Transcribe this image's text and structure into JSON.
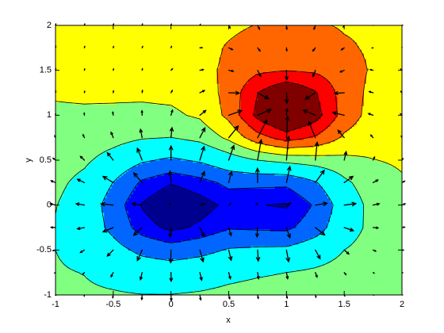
{
  "chart_data": {
    "type": "contour",
    "xlabel": "x",
    "ylabel": "y",
    "xlim": [
      -1,
      2
    ],
    "ylim": [
      -1,
      2
    ],
    "xticks": [
      -1,
      -0.5,
      0,
      0.5,
      1,
      1.5,
      2
    ],
    "yticks": [
      -1,
      -0.5,
      0,
      0.5,
      1,
      1.5,
      2
    ],
    "x": [
      -1,
      -0.75,
      -0.5,
      -0.25,
      0,
      0.25,
      0.5,
      0.75,
      1,
      1.25,
      1.5,
      1.75,
      2
    ],
    "y": [
      -1,
      -0.75,
      -0.5,
      -0.25,
      0,
      0.25,
      0.5,
      0.75,
      1,
      1.25,
      1.5,
      1.75,
      2
    ],
    "z": [
      [
        -0.44,
        -0.44,
        -0.46,
        -0.49,
        -0.49,
        -0.45,
        -0.39,
        -0.34,
        -0.31,
        -0.27,
        -0.24,
        -0.21,
        -0.18
      ],
      [
        -0.46,
        -0.51,
        -0.63,
        -0.77,
        -0.83,
        -0.75,
        -0.62,
        -0.55,
        -0.5,
        -0.41,
        -0.3,
        -0.22,
        -0.18
      ],
      [
        -0.5,
        -0.65,
        -0.97,
        -1.36,
        -1.54,
        -1.39,
        -1.15,
        -1.09,
        -1.07,
        -0.83,
        -0.5,
        -0.28,
        -0.19
      ],
      [
        -0.53,
        -0.8,
        -1.36,
        -2.04,
        -2.37,
        -2.16,
        -1.85,
        -1.89,
        -1.92,
        -1.47,
        -0.78,
        -0.35,
        -0.19
      ],
      [
        -0.48,
        -0.8,
        -1.48,
        -2.29,
        -2.7,
        -2.46,
        -2.13,
        -2.23,
        -2.3,
        -1.73,
        -0.87,
        -0.32,
        -0.13
      ],
      [
        -0.38,
        -0.65,
        -1.21,
        -1.89,
        -2.22,
        -2.0,
        -1.67,
        -1.67,
        -1.68,
        -1.25,
        -0.61,
        -0.2,
        -0.04
      ],
      [
        -0.26,
        -0.41,
        -0.73,
        -1.12,
        -1.3,
        -1.12,
        -0.78,
        -0.5,
        -0.34,
        -0.24,
        -0.12,
        -0.01,
        0.05
      ],
      [
        -0.15,
        -0.2,
        -0.31,
        -0.46,
        -0.51,
        -0.35,
        0.1,
        0.8,
        1.22,
        0.93,
        0.42,
        0.18,
        0.14
      ],
      [
        -0.05,
        -0.05,
        -0.07,
        -0.1,
        -0.08,
        0.07,
        0.63,
        1.64,
        2.26,
        1.71,
        0.78,
        0.31,
        0.22
      ],
      [
        0.03,
        0.05,
        0.06,
        0.07,
        0.1,
        0.22,
        0.66,
        1.49,
        2.0,
        1.54,
        0.76,
        0.37,
        0.3
      ],
      [
        0.11,
        0.13,
        0.15,
        0.17,
        0.19,
        0.35,
        0.6,
        0.9,
        0.98,
        0.92,
        0.7,
        0.45,
        0.37
      ],
      [
        0.18,
        0.2,
        0.22,
        0.24,
        0.27,
        0.3,
        0.55,
        0.75,
        0.85,
        0.78,
        0.56,
        0.44,
        0.44
      ],
      [
        0.26,
        0.28,
        0.3,
        0.32,
        0.34,
        0.36,
        0.39,
        0.52,
        0.62,
        0.55,
        0.46,
        0.44,
        0.45
      ]
    ],
    "levels": [
      -2.25,
      -1.8,
      -1.2,
      -0.5,
      0,
      0.5,
      1,
      1.5
    ],
    "colors": [
      "#00008f",
      "#0000ff",
      "#0066ff",
      "#00ffff",
      "#80ff80",
      "#ffff00",
      "#ff6600",
      "#ff0000",
      "#800000"
    ],
    "contour_line_color": "#000000",
    "quiver": {
      "color": "#000000",
      "u": [
        [
          0,
          -0.01,
          -0.03,
          -0.02,
          0.02,
          0.05,
          0.06,
          0.04,
          0.04,
          0.04,
          0.03,
          0.03,
          0.03
        ],
        [
          -0.05,
          -0.09,
          -0.13,
          -0.1,
          0.01,
          0.11,
          0.1,
          0.06,
          0.07,
          0.1,
          0.1,
          0.06,
          0.04
        ],
        [
          -0.15,
          -0.24,
          -0.36,
          -0.29,
          -0.02,
          0.2,
          0.15,
          0.04,
          0.13,
          0.29,
          0.28,
          0.16,
          0.09
        ],
        [
          -0.27,
          -0.42,
          -0.62,
          -0.51,
          -0.06,
          0.26,
          0.14,
          -0.04,
          0.21,
          0.57,
          0.56,
          0.3,
          0.16
        ],
        [
          -0.32,
          -0.5,
          -0.75,
          -0.61,
          -0.09,
          0.29,
          0.12,
          -0.09,
          0.25,
          0.72,
          0.71,
          0.37,
          0.19
        ],
        [
          -0.27,
          -0.42,
          -0.62,
          -0.51,
          -0.06,
          0.28,
          0.17,
          -0.01,
          0.21,
          0.54,
          0.53,
          0.29,
          0.16
        ],
        [
          -0.15,
          -0.24,
          -0.36,
          -0.29,
          0,
          0.26,
          0.31,
          0.22,
          0.13,
          0.11,
          0.12,
          0.09,
          0.06
        ],
        [
          -0.05,
          -0.08,
          -0.13,
          -0.1,
          0.06,
          0.31,
          0.58,
          0.56,
          0.07,
          -0.4,
          -0.38,
          -0.14,
          -0.04
        ],
        [
          0,
          -0.01,
          -0.03,
          -0.01,
          0.09,
          0.36,
          0.79,
          0.82,
          0.04,
          -0.74,
          -0.7,
          -0.28,
          -0.09
        ],
        [
          0.02,
          0.02,
          0.01,
          0.02,
          0.08,
          0.28,
          0.64,
          0.67,
          0.03,
          -0.62,
          -0.59,
          -0.23,
          -0.07
        ],
        [
          0.02,
          0.02,
          0.02,
          0.02,
          0.09,
          0.21,
          0.28,
          0.19,
          0.01,
          -0.14,
          -0.24,
          -0.17,
          -0.08
        ],
        [
          0.02,
          0.02,
          0.02,
          0.03,
          0.03,
          0.14,
          0.23,
          0.15,
          0.02,
          -0.15,
          -0.17,
          -0.06,
          0
        ],
        [
          0.02,
          0.02,
          0.02,
          0.02,
          0.02,
          0.03,
          0.08,
          0.12,
          0.02,
          -0.08,
          -0.06,
          -0.01,
          0.01
        ]
      ],
      "v": [
        [
          -0.02,
          -0.07,
          -0.17,
          -0.28,
          -0.34,
          -0.3,
          -0.23,
          -0.21,
          -0.19,
          -0.14,
          -0.06,
          -0.01,
          0
        ],
        [
          -0.03,
          -0.11,
          -0.26,
          -0.44,
          -0.53,
          -0.47,
          -0.38,
          -0.38,
          -0.38,
          -0.28,
          -0.13,
          -0.04,
          -0.01
        ],
        [
          -0.04,
          -0.15,
          -0.37,
          -0.64,
          -0.77,
          -0.71,
          -0.62,
          -0.67,
          -0.71,
          -0.53,
          -0.24,
          -0.07,
          -0.01
        ],
        [
          0.01,
          -0.08,
          -0.26,
          -0.47,
          -0.58,
          -0.54,
          -0.49,
          -0.57,
          -0.62,
          -0.45,
          -0.19,
          -0.02,
          0.03
        ],
        [
          0.08,
          0.08,
          0.08,
          0.08,
          0.08,
          0.08,
          0.09,
          0.11,
          0.12,
          0.11,
          0.09,
          0.08,
          0.08
        ],
        [
          0.11,
          0.2,
          0.38,
          0.59,
          0.7,
          0.67,
          0.68,
          0.87,
          0.98,
          0.75,
          0.38,
          0.16,
          0.09
        ],
        [
          0.12,
          0.23,
          0.45,
          0.72,
          0.86,
          0.83,
          0.89,
          1.24,
          1.45,
          1.09,
          0.52,
          0.19,
          0.09
        ],
        [
          0.11,
          0.18,
          0.33,
          0.51,
          0.61,
          0.6,
          0.71,
          1.07,
          1.3,
          0.98,
          0.45,
          0.16,
          0.09
        ],
        [
          0.09,
          0.13,
          0.19,
          0.27,
          0.31,
          0.29,
          0.28,
          0.35,
          0.39,
          0.31,
          0.17,
          0.1,
          0.08
        ],
        [
          0.08,
          0.09,
          0.11,
          0.14,
          0.14,
          0.14,
          -0.02,
          -0.37,
          -0.64,
          -0.4,
          -0.04,
          0.07,
          0.08
        ],
        [
          0.08,
          0.08,
          0.08,
          0.09,
          0.09,
          0.04,
          -0.06,
          -0.37,
          -0.58,
          -0.38,
          -0.1,
          0.04,
          0.07
        ],
        [
          0.08,
          0.08,
          0.08,
          0.08,
          0.08,
          0.01,
          -0.11,
          -0.19,
          -0.18,
          -0.19,
          -0.12,
          -0.01,
          0.04
        ],
        [
          0.08,
          0.08,
          0.08,
          0.08,
          0.07,
          0.06,
          -0.16,
          -0.23,
          -0.23,
          -0.23,
          -0.1,
          0,
          0.01
        ]
      ]
    }
  }
}
